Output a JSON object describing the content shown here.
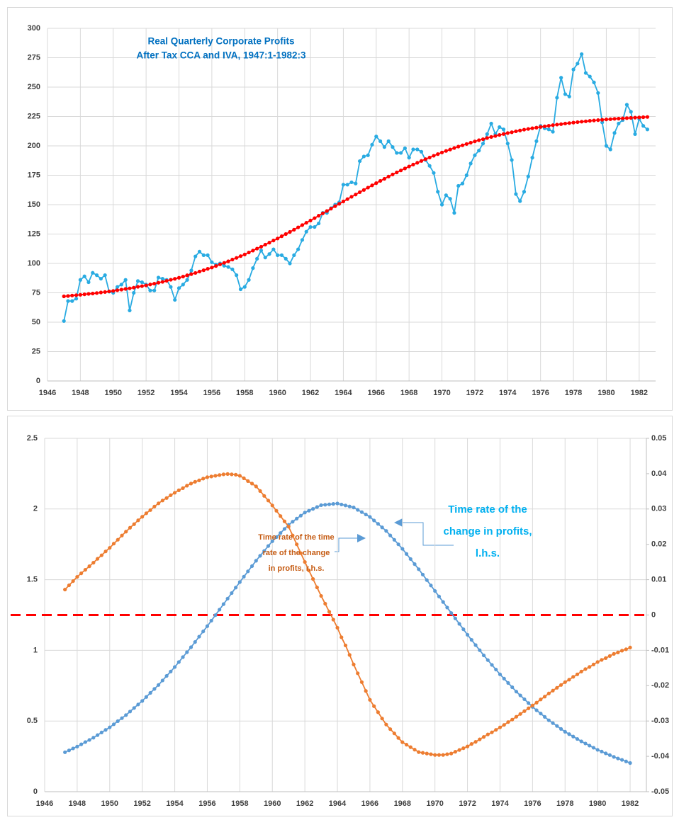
{
  "chart_data": [
    {
      "type": "line",
      "title": [
        "Real Quarterly  Corporate Profits",
        "After Tax CCA and IVA, 1947:1-1982:3"
      ],
      "title_color": "#0070c0",
      "grid": true,
      "xlim": [
        1946,
        1983
      ],
      "xticks": [
        1946,
        1948,
        1950,
        1952,
        1954,
        1956,
        1958,
        1960,
        1962,
        1964,
        1966,
        1968,
        1970,
        1972,
        1974,
        1976,
        1978,
        1980,
        1982
      ],
      "ylim": [
        0,
        300
      ],
      "yticks": [
        0,
        25,
        50,
        75,
        100,
        125,
        150,
        175,
        200,
        225,
        250,
        275,
        300
      ],
      "x": [
        1947,
        1947.25,
        1947.5,
        1947.75,
        1948,
        1948.25,
        1948.5,
        1948.75,
        1949,
        1949.25,
        1949.5,
        1949.75,
        1950,
        1950.25,
        1950.5,
        1950.75,
        1951,
        1951.25,
        1951.5,
        1951.75,
        1952,
        1952.25,
        1952.5,
        1952.75,
        1953,
        1953.25,
        1953.5,
        1953.75,
        1954,
        1954.25,
        1954.5,
        1954.75,
        1955,
        1955.25,
        1955.5,
        1955.75,
        1956,
        1956.25,
        1956.5,
        1956.75,
        1957,
        1957.25,
        1957.5,
        1957.75,
        1958,
        1958.25,
        1958.5,
        1958.75,
        1959,
        1959.25,
        1959.5,
        1959.75,
        1960,
        1960.25,
        1960.5,
        1960.75,
        1961,
        1961.25,
        1961.5,
        1961.75,
        1962,
        1962.25,
        1962.5,
        1962.75,
        1963,
        1963.25,
        1963.5,
        1963.75,
        1964,
        1964.25,
        1964.5,
        1964.75,
        1965,
        1965.25,
        1965.5,
        1965.75,
        1966,
        1966.25,
        1966.5,
        1966.75,
        1967,
        1967.25,
        1967.5,
        1967.75,
        1968,
        1968.25,
        1968.5,
        1968.75,
        1969,
        1969.25,
        1969.5,
        1969.75,
        1970,
        1970.25,
        1970.5,
        1970.75,
        1971,
        1971.25,
        1971.5,
        1971.75,
        1972,
        1972.25,
        1972.5,
        1972.75,
        1973,
        1973.25,
        1973.5,
        1973.75,
        1974,
        1974.25,
        1974.5,
        1974.75,
        1975,
        1975.25,
        1975.5,
        1975.75,
        1976,
        1976.25,
        1976.5,
        1976.75,
        1977,
        1977.25,
        1977.5,
        1977.75,
        1978,
        1978.25,
        1978.5,
        1978.75,
        1979,
        1979.25,
        1979.5,
        1979.75,
        1980,
        1980.25,
        1980.5,
        1980.75,
        1981,
        1981.25,
        1981.5,
        1981.75,
        1982,
        1982.25,
        1982.5
      ],
      "series": [
        {
          "color": "#29abe2",
          "values": [
            51,
            68,
            68,
            70,
            86,
            89,
            84,
            92,
            90,
            87,
            90,
            76,
            75,
            80,
            82,
            86,
            60,
            75,
            85,
            84,
            82,
            77,
            77,
            88,
            87,
            86,
            80,
            69,
            79,
            82,
            86,
            94,
            106,
            110,
            107,
            107,
            101,
            99,
            100,
            98,
            97,
            95,
            90,
            78,
            80,
            86,
            96,
            104,
            111,
            105,
            108,
            112,
            107,
            107,
            104,
            100,
            107,
            112,
            120,
            127,
            131,
            131,
            134,
            143,
            143,
            147,
            150,
            152,
            167,
            167,
            169,
            168,
            187,
            191,
            192,
            201,
            208,
            204,
            199,
            204,
            199,
            194,
            194,
            198,
            190,
            197,
            197,
            195,
            188,
            183,
            177,
            161,
            150,
            158,
            155,
            143,
            166,
            168,
            175,
            185,
            192,
            196,
            202,
            210,
            219,
            210,
            216,
            214,
            202,
            188,
            159,
            153,
            161,
            174,
            190,
            204,
            217,
            215,
            214,
            212,
            241,
            258,
            244,
            242,
            265,
            270,
            278,
            262,
            259,
            254,
            245,
            220,
            200,
            197,
            211,
            219,
            222,
            235,
            229,
            210,
            223,
            217,
            214
          ]
        },
        {
          "color": "#ff0000",
          "values": [
            72.0,
            72.3,
            72.7,
            73.0,
            73.3,
            73.7,
            74.1,
            74.4,
            74.8,
            75.3,
            75.7,
            76.2,
            76.6,
            77.2,
            77.7,
            78.3,
            78.8,
            79.4,
            80.1,
            80.7,
            81.3,
            82.1,
            82.8,
            83.6,
            84.3,
            85.2,
            86.1,
            86.9,
            87.8,
            88.8,
            89.9,
            90.9,
            91.9,
            93.1,
            94.2,
            95.4,
            96.5,
            97.8,
            99.2,
            100.5,
            101.8,
            103.3,
            104.7,
            106.2,
            107.6,
            109.3,
            110.9,
            112.6,
            114.2,
            116.0,
            117.7,
            119.5,
            121.2,
            123.1,
            125.0,
            126.8,
            128.7,
            130.7,
            132.6,
            134.6,
            136.5,
            138.5,
            140.6,
            142.6,
            144.6,
            146.6,
            148.7,
            150.7,
            152.7,
            154.7,
            156.7,
            158.6,
            160.6,
            162.5,
            164.5,
            166.4,
            168.3,
            170.2,
            172.0,
            173.9,
            175.7,
            177.4,
            179.1,
            180.8,
            182.5,
            184.1,
            185.6,
            187.2,
            188.7,
            190.1,
            191.6,
            193.0,
            194.4,
            195.7,
            196.9,
            198.2,
            199.4,
            200.5,
            201.6,
            202.7,
            203.8,
            204.8,
            205.7,
            206.7,
            207.6,
            208.4,
            209.3,
            210.1,
            210.9,
            211.6,
            212.4,
            213.1,
            213.8,
            214.4,
            215.0,
            215.5,
            216.1,
            216.6,
            217.1,
            217.6,
            218.1,
            218.5,
            219.0,
            219.4,
            219.8,
            220.2,
            220.6,
            220.9,
            221.3,
            221.6,
            221.9,
            222.2,
            222.5,
            222.7,
            223.0,
            223.2,
            223.4,
            223.6,
            223.8,
            224.0,
            224.2,
            224.4,
            224.6
          ]
        }
      ]
    },
    {
      "type": "line",
      "grid": true,
      "xlim": [
        1946,
        1983
      ],
      "xticks": [
        1946,
        1948,
        1950,
        1952,
        1954,
        1956,
        1958,
        1960,
        1962,
        1964,
        1966,
        1968,
        1970,
        1972,
        1974,
        1976,
        1978,
        1980,
        1982
      ],
      "ylim": [
        0,
        2.5
      ],
      "yticks": [
        0,
        0.5,
        1,
        1.5,
        2,
        2.5
      ],
      "y2lim": [
        -0.05,
        0.05
      ],
      "y2ticks": [
        -0.05,
        -0.04,
        -0.03,
        -0.02,
        -0.01,
        0,
        0.01,
        0.02,
        0.03,
        0.04,
        0.05
      ],
      "reference_line": {
        "value": 0,
        "axis": "y2",
        "color": "#ff0000",
        "style": "dashed"
      },
      "x": [
        1947.25,
        1947.5,
        1947.75,
        1948,
        1948.25,
        1948.5,
        1948.75,
        1949,
        1949.25,
        1949.5,
        1949.75,
        1950,
        1950.25,
        1950.5,
        1950.75,
        1951,
        1951.25,
        1951.5,
        1951.75,
        1952,
        1952.25,
        1952.5,
        1952.75,
        1953,
        1953.25,
        1953.5,
        1953.75,
        1954,
        1954.25,
        1954.5,
        1954.75,
        1955,
        1955.25,
        1955.5,
        1955.75,
        1956,
        1956.25,
        1956.5,
        1956.75,
        1957,
        1957.25,
        1957.5,
        1957.75,
        1958,
        1958.25,
        1958.5,
        1958.75,
        1959,
        1959.25,
        1959.5,
        1959.75,
        1960,
        1960.25,
        1960.5,
        1960.75,
        1961,
        1961.25,
        1961.5,
        1961.75,
        1962,
        1962.25,
        1962.5,
        1962.75,
        1963,
        1963.25,
        1963.5,
        1963.75,
        1964,
        1964.25,
        1964.5,
        1964.75,
        1965,
        1965.25,
        1965.5,
        1965.75,
        1966,
        1966.25,
        1966.5,
        1966.75,
        1967,
        1967.25,
        1967.5,
        1967.75,
        1968,
        1968.25,
        1968.5,
        1968.75,
        1969,
        1969.25,
        1969.5,
        1969.75,
        1970,
        1970.25,
        1970.5,
        1970.75,
        1971,
        1971.25,
        1971.5,
        1971.75,
        1972,
        1972.25,
        1972.5,
        1972.75,
        1973,
        1973.25,
        1973.5,
        1973.75,
        1974,
        1974.25,
        1974.5,
        1974.75,
        1975,
        1975.25,
        1975.5,
        1975.75,
        1976,
        1976.25,
        1976.5,
        1976.75,
        1977,
        1977.25,
        1977.5,
        1977.75,
        1978,
        1978.25,
        1978.5,
        1978.75,
        1979,
        1979.25,
        1979.5,
        1979.75,
        1980,
        1980.25,
        1980.5,
        1980.75,
        1981,
        1981.25,
        1981.5,
        1981.75,
        1982
      ],
      "series": [
        {
          "color": "#5b9bd5",
          "axis": "y",
          "values": [
            0.279,
            0.292,
            0.306,
            0.319,
            0.335,
            0.351,
            0.366,
            0.382,
            0.4,
            0.419,
            0.437,
            0.455,
            0.477,
            0.499,
            0.52,
            0.542,
            0.567,
            0.592,
            0.617,
            0.642,
            0.67,
            0.699,
            0.727,
            0.755,
            0.787,
            0.819,
            0.85,
            0.882,
            0.917,
            0.952,
            0.987,
            1.022,
            1.059,
            1.097,
            1.134,
            1.171,
            1.21,
            1.249,
            1.288,
            1.327,
            1.366,
            1.405,
            1.444,
            1.483,
            1.521,
            1.559,
            1.596,
            1.634,
            1.669,
            1.703,
            1.738,
            1.772,
            1.801,
            1.83,
            1.859,
            1.888,
            1.91,
            1.932,
            1.953,
            1.975,
            1.988,
            2.001,
            2.014,
            2.027,
            2.03,
            2.033,
            2.036,
            2.039,
            2.032,
            2.025,
            2.018,
            2.011,
            1.994,
            1.978,
            1.961,
            1.944,
            1.919,
            1.895,
            1.87,
            1.845,
            1.813,
            1.782,
            1.75,
            1.718,
            1.682,
            1.646,
            1.61,
            1.574,
            1.536,
            1.497,
            1.459,
            1.42,
            1.381,
            1.342,
            1.303,
            1.264,
            1.226,
            1.187,
            1.149,
            1.11,
            1.074,
            1.037,
            1.001,
            0.964,
            0.931,
            0.897,
            0.864,
            0.83,
            0.8,
            0.769,
            0.739,
            0.708,
            0.681,
            0.654,
            0.627,
            0.6,
            0.576,
            0.553,
            0.529,
            0.505,
            0.485,
            0.465,
            0.444,
            0.424,
            0.407,
            0.39,
            0.373,
            0.356,
            0.341,
            0.326,
            0.311,
            0.296,
            0.284,
            0.271,
            0.259,
            0.246,
            0.235,
            0.225,
            0.214,
            0.203
          ]
        },
        {
          "color": "#ed7d31",
          "axis": "y2",
          "values": [
            0.0072,
            0.0084,
            0.0096,
            0.0108,
            0.0118,
            0.0128,
            0.0138,
            0.0148,
            0.0159,
            0.0169,
            0.018,
            0.019,
            0.0202,
            0.0213,
            0.0225,
            0.0236,
            0.0247,
            0.0257,
            0.0268,
            0.0278,
            0.0288,
            0.0297,
            0.0307,
            0.0316,
            0.0324,
            0.0331,
            0.0339,
            0.0346,
            0.0353,
            0.0359,
            0.0366,
            0.0372,
            0.0377,
            0.0381,
            0.0386,
            0.039,
            0.0392,
            0.0394,
            0.0396,
            0.0398,
            0.0399,
            0.0398,
            0.0397,
            0.0394,
            0.0387,
            0.0379,
            0.0372,
            0.0364,
            0.0351,
            0.0337,
            0.0324,
            0.031,
            0.0295,
            0.028,
            0.0265,
            0.025,
            0.0225,
            0.02,
            0.0175,
            0.015,
            0.0126,
            0.0102,
            0.0078,
            0.0054,
            0.0032,
            0.0009,
            -0.0013,
            -0.0036,
            -0.0063,
            -0.0086,
            -0.0113,
            -0.014,
            -0.0165,
            -0.019,
            -0.0215,
            -0.024,
            -0.0258,
            -0.0275,
            -0.0293,
            -0.031,
            -0.0323,
            -0.0335,
            -0.0348,
            -0.036,
            -0.0367,
            -0.0374,
            -0.0381,
            -0.0388,
            -0.039,
            -0.0392,
            -0.0394,
            -0.0396,
            -0.0396,
            -0.0396,
            -0.0394,
            -0.0392,
            -0.0387,
            -0.0382,
            -0.0377,
            -0.0372,
            -0.0365,
            -0.0359,
            -0.0352,
            -0.0345,
            -0.0338,
            -0.0332,
            -0.0325,
            -0.0318,
            -0.0311,
            -0.0303,
            -0.0296,
            -0.0288,
            -0.028,
            -0.0272,
            -0.0264,
            -0.0256,
            -0.0248,
            -0.0239,
            -0.0231,
            -0.0222,
            -0.0214,
            -0.0206,
            -0.0198,
            -0.019,
            -0.0183,
            -0.0175,
            -0.0168,
            -0.016,
            -0.0153,
            -0.0147,
            -0.014,
            -0.0133,
            -0.0127,
            -0.0122,
            -0.0116,
            -0.011,
            -0.0106,
            -0.0101,
            -0.0097,
            -0.0092
          ]
        }
      ],
      "annotations": [
        {
          "text": [
            "Time rate of the",
            "change in profits,",
            "l.h.s."
          ],
          "color": "#00b0f0"
        },
        {
          "text": [
            "Time rate of the time",
            "rate of the change",
            "in profits, r.h.s."
          ],
          "color": "#c55a11"
        }
      ]
    }
  ]
}
